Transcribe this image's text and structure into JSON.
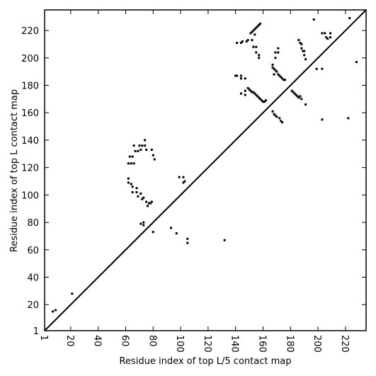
{
  "chart_data": {
    "type": "scatter",
    "x_label": "Residue index of top L/5 contact map",
    "y_label": "Residue index of top L contact map",
    "xlim": [
      1,
      235
    ],
    "ylim": [
      1,
      235
    ],
    "xticks": [
      1,
      20,
      40,
      60,
      80,
      100,
      120,
      140,
      160,
      180,
      200,
      220
    ],
    "yticks": [
      1,
      20,
      40,
      60,
      80,
      100,
      120,
      140,
      160,
      180,
      200,
      220
    ],
    "color": "#000000",
    "x": [
      7,
      9,
      21,
      62,
      64,
      66,
      63,
      65,
      67,
      69,
      66,
      70,
      72,
      71,
      74,
      74,
      75,
      79,
      80,
      81,
      62,
      62,
      64,
      65,
      65,
      68,
      68,
      69,
      71,
      72,
      73,
      75,
      76,
      77,
      78,
      79,
      71,
      73,
      73,
      80,
      93,
      97,
      99,
      102,
      102,
      103,
      105,
      105,
      132,
      141,
      144,
      145,
      148,
      149,
      151,
      152,
      153,
      154,
      155,
      156,
      157,
      158,
      153,
      155,
      155,
      157,
      157,
      152,
      154,
      140,
      141,
      144,
      144,
      147,
      144,
      147,
      147,
      149,
      150,
      151,
      152,
      153,
      154,
      155,
      156,
      157,
      158,
      159,
      160,
      161,
      162,
      167,
      168,
      169,
      170,
      171,
      172,
      173,
      174,
      175,
      176,
      168,
      167,
      169,
      169,
      171,
      171,
      167,
      168,
      169,
      170,
      172,
      173,
      174,
      181,
      182,
      183,
      184,
      185,
      186,
      187,
      188,
      186,
      187,
      188,
      188,
      189,
      190,
      190,
      191,
      191,
      197,
      199,
      203,
      203,
      205,
      206,
      207,
      209,
      209,
      203,
      222,
      223,
      228
    ],
    "y": [
      15,
      16,
      28,
      123,
      123,
      123,
      128,
      128,
      132,
      132,
      136,
      136,
      136,
      133,
      136,
      140,
      133,
      133,
      129,
      126,
      109,
      112,
      108,
      106,
      102,
      105,
      102,
      99,
      101,
      97,
      98,
      95,
      92,
      94,
      94,
      95,
      79,
      80,
      78,
      73,
      76,
      72,
      113,
      113,
      109,
      110,
      65,
      68,
      67,
      211,
      211,
      212,
      212,
      213,
      218,
      219,
      220,
      221,
      222,
      223,
      224,
      225,
      208,
      208,
      204,
      202,
      200,
      213,
      217,
      187,
      187,
      187,
      185,
      185,
      174,
      176,
      173,
      178,
      177,
      176,
      175,
      175,
      174,
      173,
      172,
      171,
      170,
      169,
      168,
      168,
      169,
      193,
      192,
      191,
      190,
      188,
      187,
      186,
      185,
      184,
      184,
      188,
      195,
      200,
      204,
      204,
      207,
      161,
      159,
      158,
      157,
      156,
      154,
      153,
      176,
      175,
      174,
      173,
      172,
      171,
      172,
      170,
      213,
      211,
      210,
      207,
      205,
      205,
      202,
      199,
      166,
      228,
      192,
      192,
      218,
      218,
      215,
      214,
      215,
      218,
      155,
      156,
      229,
      197
    ]
  }
}
